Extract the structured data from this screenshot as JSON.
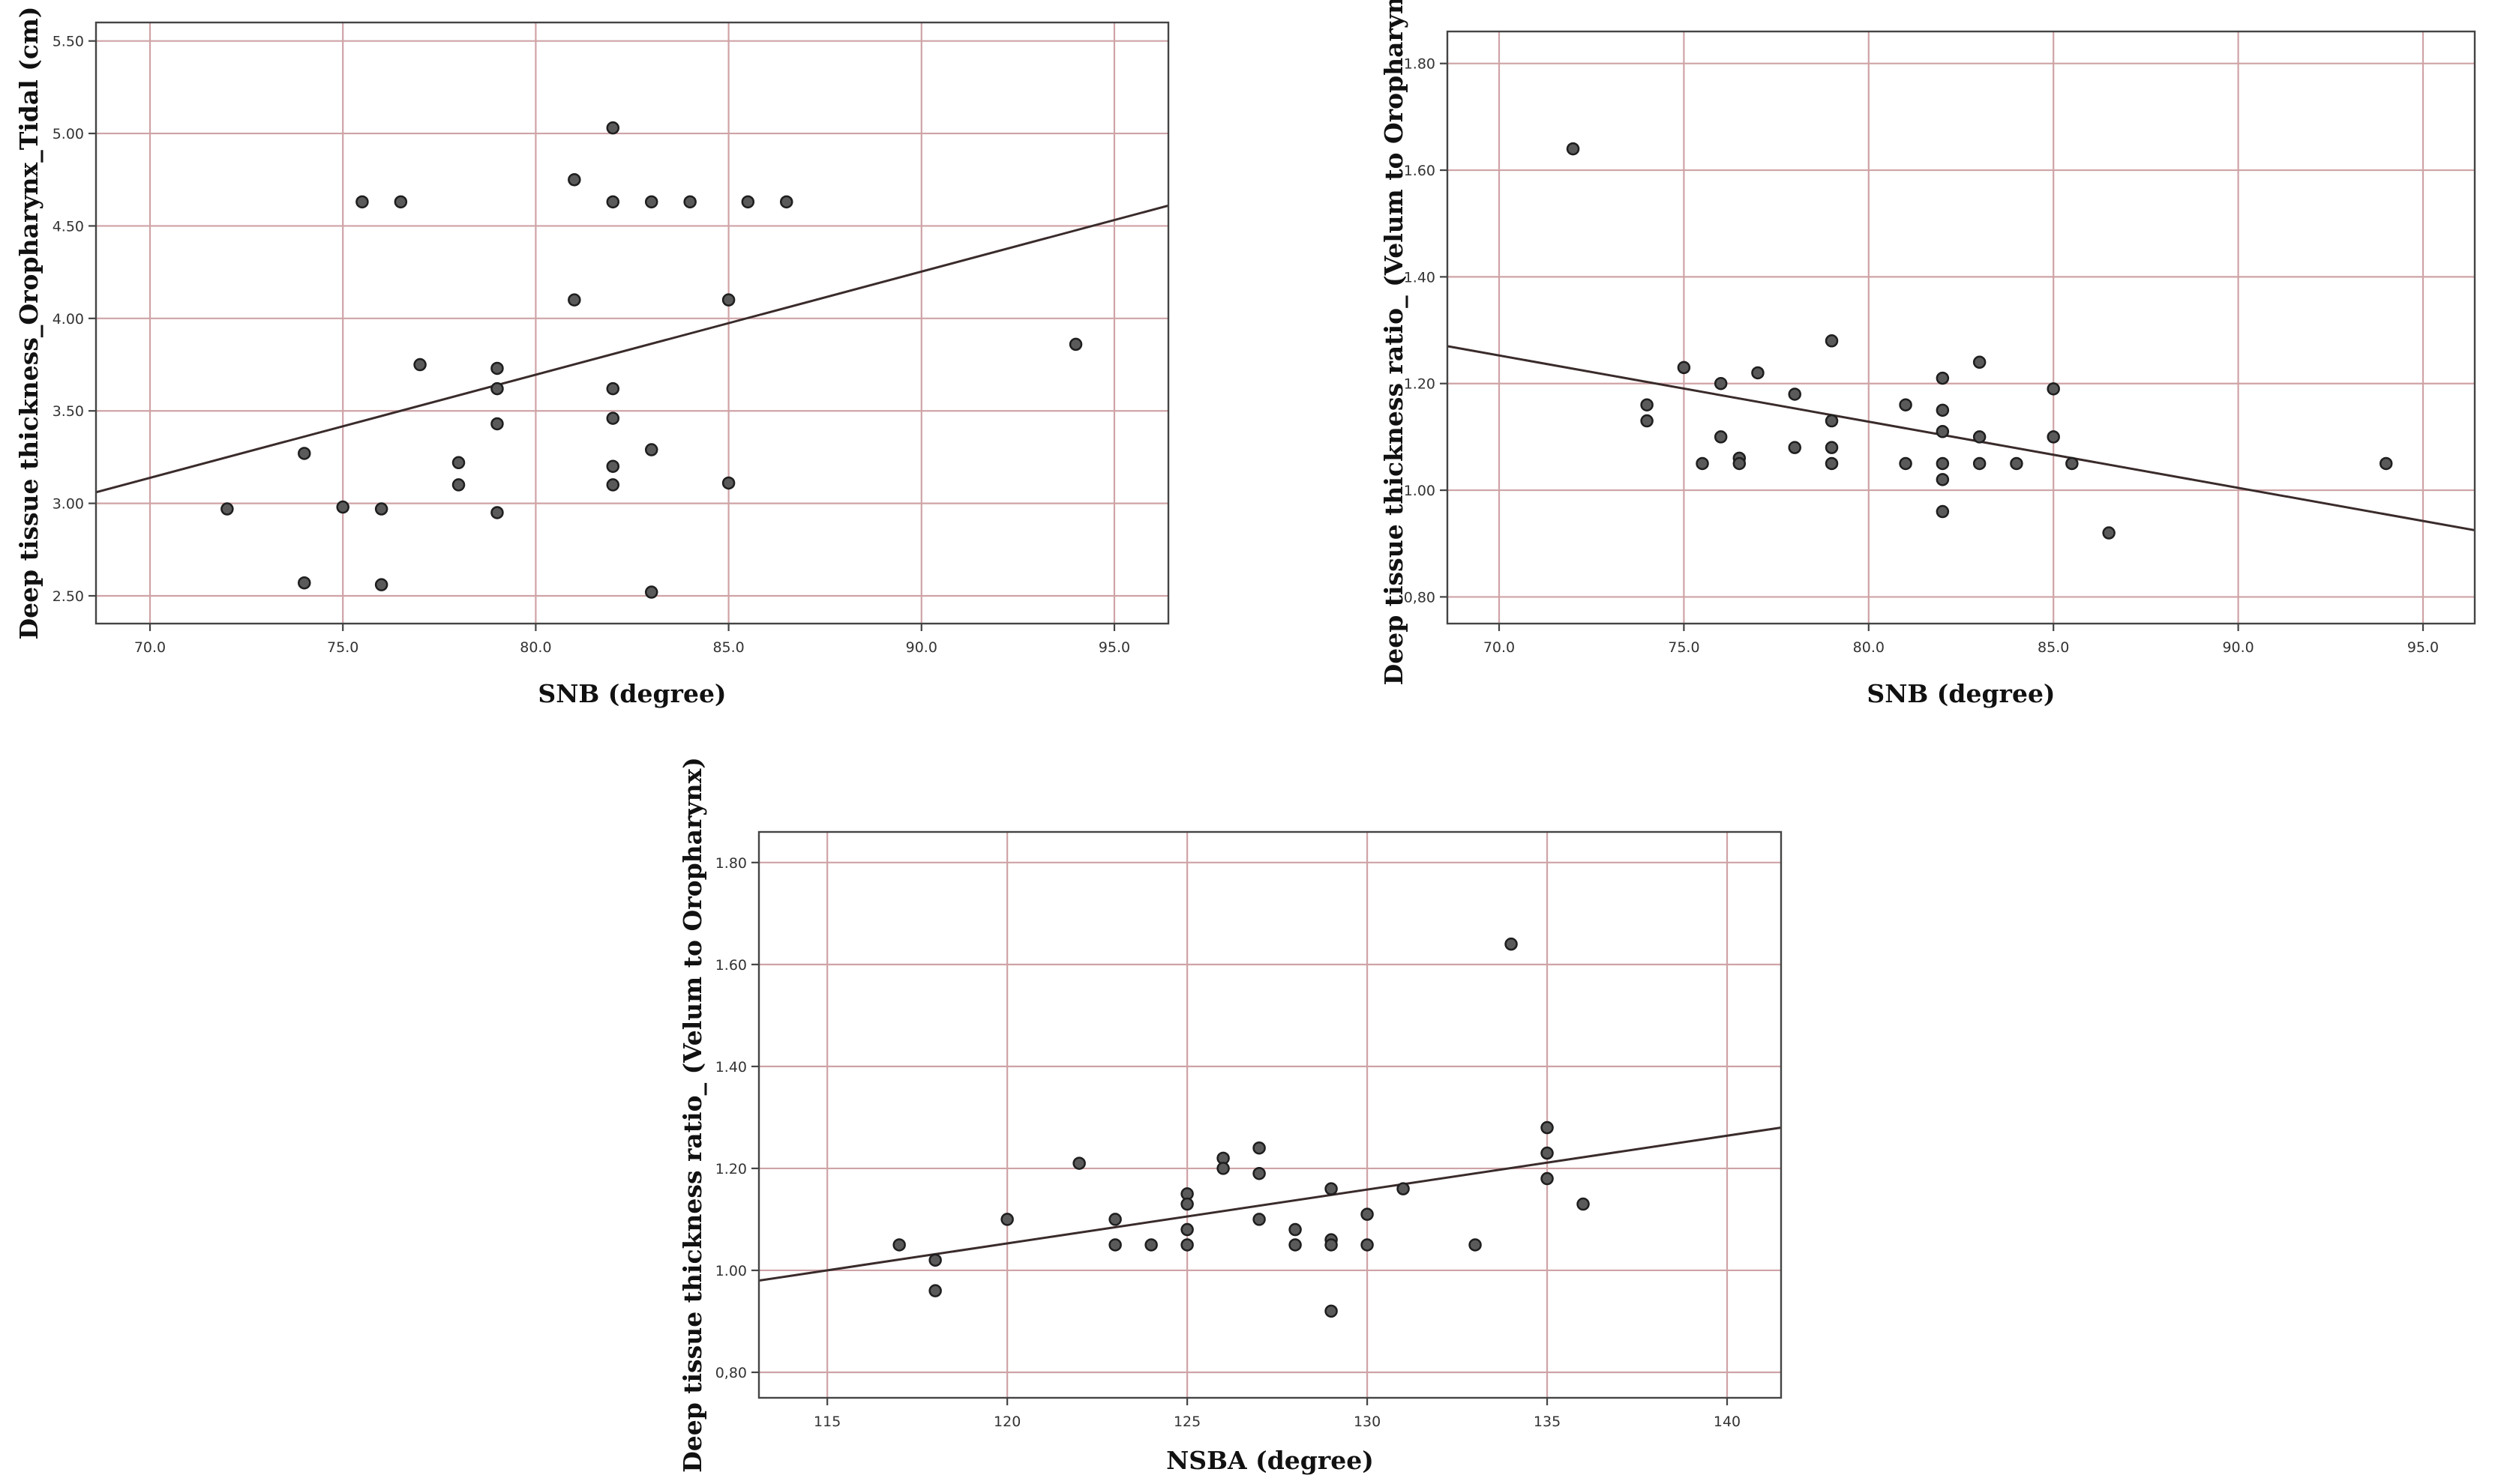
{
  "chart_data": [
    {
      "id": "snb-vs-tissue-thickness",
      "type": "scatter",
      "title": "",
      "xlabel": "SNB (degree)",
      "ylabel": "Deep tissue thickness_Oropharynx_Tidal (cm)",
      "xlim": [
        68.6,
        96.4
      ],
      "ylim": [
        2.35,
        5.6
      ],
      "x_ticks": [
        70,
        75,
        80,
        85,
        90,
        95
      ],
      "x_tick_labels": [
        "70.0",
        "75.0",
        "80.0",
        "85.0",
        "90.0",
        "95.0"
      ],
      "y_ticks": [
        2.5,
        3.0,
        3.5,
        4.0,
        4.5,
        5.0,
        5.5
      ],
      "y_tick_labels": [
        "2.50",
        "3.00",
        "3.50",
        "4.00",
        "4.50",
        "5.00",
        "5.50"
      ],
      "grid": true,
      "series": [
        {
          "name": "observations",
          "points": [
            [
              72,
              2.97
            ],
            [
              74,
              3.27
            ],
            [
              74,
              2.57
            ],
            [
              75,
              2.98
            ],
            [
              75.5,
              4.63
            ],
            [
              76,
              2.97
            ],
            [
              76,
              2.56
            ],
            [
              76.5,
              4.63
            ],
            [
              77,
              3.75
            ],
            [
              78,
              3.22
            ],
            [
              78,
              3.1
            ],
            [
              79,
              3.73
            ],
            [
              79,
              3.62
            ],
            [
              79,
              3.43
            ],
            [
              79,
              2.95
            ],
            [
              81,
              4.75
            ],
            [
              81,
              4.1
            ],
            [
              82,
              5.03
            ],
            [
              82,
              4.63
            ],
            [
              82,
              3.62
            ],
            [
              82,
              3.46
            ],
            [
              82,
              3.2
            ],
            [
              82,
              3.1
            ],
            [
              83,
              4.63
            ],
            [
              83,
              3.29
            ],
            [
              83,
              2.52
            ],
            [
              84,
              4.63
            ],
            [
              85,
              4.1
            ],
            [
              85,
              3.11
            ],
            [
              85.5,
              4.63
            ],
            [
              86.5,
              4.63
            ],
            [
              94,
              3.86
            ]
          ]
        }
      ],
      "fit_line": {
        "x": [
          68.6,
          96.4
        ],
        "y": [
          3.06,
          4.61
        ]
      }
    },
    {
      "id": "snb-vs-thickness-ratio",
      "type": "scatter",
      "title": "",
      "xlabel": "SNB (degree)",
      "ylabel": "Deep tissue thickness ratio_ (Velum to Oropharynx)",
      "xlim": [
        68.6,
        96.4
      ],
      "ylim": [
        0.75,
        1.86
      ],
      "x_ticks": [
        70,
        75,
        80,
        85,
        90,
        95
      ],
      "x_tick_labels": [
        "70.0",
        "75.0",
        "80.0",
        "85.0",
        "90.0",
        "95.0"
      ],
      "y_ticks": [
        0.8,
        1.0,
        1.2,
        1.4,
        1.6,
        1.8
      ],
      "y_tick_labels": [
        "0,80",
        "1.00",
        "1.20",
        "1.40",
        "1.60",
        "1.80"
      ],
      "grid": true,
      "series": [
        {
          "name": "observations",
          "points": [
            [
              72,
              1.64
            ],
            [
              74,
              1.16
            ],
            [
              74,
              1.13
            ],
            [
              75,
              1.23
            ],
            [
              75.5,
              1.05
            ],
            [
              76,
              1.2
            ],
            [
              76,
              1.1
            ],
            [
              76.5,
              1.06
            ],
            [
              76.5,
              1.05
            ],
            [
              77,
              1.22
            ],
            [
              78,
              1.18
            ],
            [
              78,
              1.08
            ],
            [
              79,
              1.28
            ],
            [
              79,
              1.13
            ],
            [
              79,
              1.08
            ],
            [
              79,
              1.05
            ],
            [
              81,
              1.16
            ],
            [
              81,
              1.05
            ],
            [
              82,
              1.21
            ],
            [
              82,
              1.15
            ],
            [
              82,
              1.11
            ],
            [
              82,
              1.05
            ],
            [
              82,
              1.02
            ],
            [
              82,
              0.96
            ],
            [
              83,
              1.24
            ],
            [
              83,
              1.1
            ],
            [
              83,
              1.05
            ],
            [
              84,
              1.05
            ],
            [
              85,
              1.19
            ],
            [
              85,
              1.1
            ],
            [
              85.5,
              1.05
            ],
            [
              86.5,
              0.92
            ],
            [
              94,
              1.05
            ]
          ]
        }
      ],
      "fit_line": {
        "x": [
          68.6,
          96.4
        ],
        "y": [
          1.27,
          0.925
        ]
      }
    },
    {
      "id": "nsba-vs-thickness-ratio",
      "type": "scatter",
      "title": "",
      "xlabel": "NSBA (degree)",
      "ylabel": "Deep tissue thickness ratio_ (Velum to Oropharynx)",
      "xlim": [
        113.1,
        141.5
      ],
      "ylim": [
        0.75,
        1.86
      ],
      "x_ticks": [
        115,
        120,
        125,
        130,
        135,
        140
      ],
      "x_tick_labels": [
        "115",
        "120",
        "125",
        "130",
        "135",
        "140"
      ],
      "y_ticks": [
        0.8,
        1.0,
        1.2,
        1.4,
        1.6,
        1.8
      ],
      "y_tick_labels": [
        "0,80",
        "1.00",
        "1.20",
        "1.40",
        "1.60",
        "1.80"
      ],
      "grid": true,
      "series": [
        {
          "name": "observations",
          "points": [
            [
              117,
              1.05
            ],
            [
              118,
              1.02
            ],
            [
              118,
              0.96
            ],
            [
              120,
              1.1
            ],
            [
              122,
              1.21
            ],
            [
              123,
              1.1
            ],
            [
              123,
              1.05
            ],
            [
              124,
              1.05
            ],
            [
              125,
              1.15
            ],
            [
              125,
              1.13
            ],
            [
              125,
              1.08
            ],
            [
              125,
              1.05
            ],
            [
              126,
              1.22
            ],
            [
              126,
              1.2
            ],
            [
              127,
              1.24
            ],
            [
              127,
              1.19
            ],
            [
              127,
              1.1
            ],
            [
              128,
              1.08
            ],
            [
              128,
              1.05
            ],
            [
              129,
              1.16
            ],
            [
              129,
              1.06
            ],
            [
              129,
              1.05
            ],
            [
              129,
              0.92
            ],
            [
              130,
              1.11
            ],
            [
              130,
              1.05
            ],
            [
              131,
              1.16
            ],
            [
              133,
              1.05
            ],
            [
              134,
              1.64
            ],
            [
              135,
              1.28
            ],
            [
              135,
              1.23
            ],
            [
              135,
              1.18
            ],
            [
              136,
              1.13
            ]
          ]
        }
      ],
      "fit_line": {
        "x": [
          113.1,
          141.5
        ],
        "y": [
          0.98,
          1.28
        ]
      }
    }
  ]
}
